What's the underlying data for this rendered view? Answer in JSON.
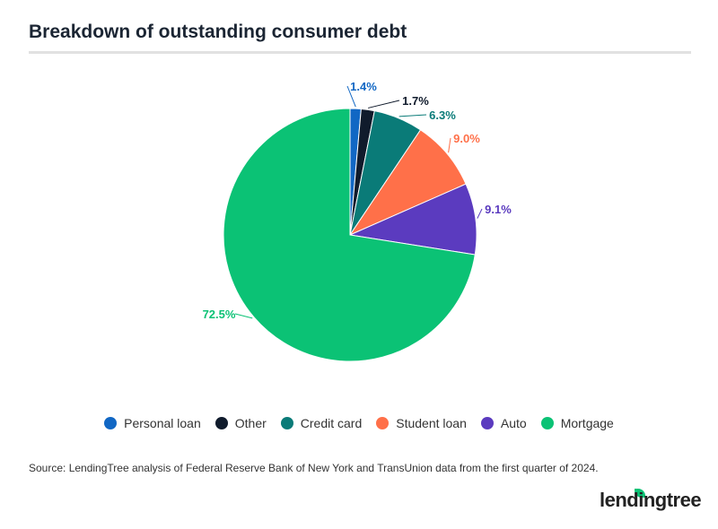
{
  "title": "Breakdown of outstanding consumer debt",
  "chart_data": {
    "type": "pie",
    "title": "Breakdown of outstanding consumer debt",
    "legend_position": "bottom",
    "slices": [
      {
        "name": "Personal loan",
        "value": 1.4,
        "label": "1.4%",
        "color": "#1167c4"
      },
      {
        "name": "Other",
        "value": 1.7,
        "label": "1.7%",
        "color": "#101b2c"
      },
      {
        "name": "Credit card",
        "value": 6.3,
        "label": "6.3%",
        "color": "#0a7b78"
      },
      {
        "name": "Student loan",
        "value": 9.0,
        "label": "9.0%",
        "color": "#ff7049"
      },
      {
        "name": "Auto",
        "value": 9.1,
        "label": "9.1%",
        "color": "#5b3bbf"
      },
      {
        "name": "Mortgage",
        "value": 72.5,
        "label": "72.5%",
        "color": "#0bc275"
      }
    ]
  },
  "source": "Source: LendingTree analysis of Federal Reserve Bank of New York and TransUnion data from the first quarter of 2024.",
  "logo": "lendingtree"
}
